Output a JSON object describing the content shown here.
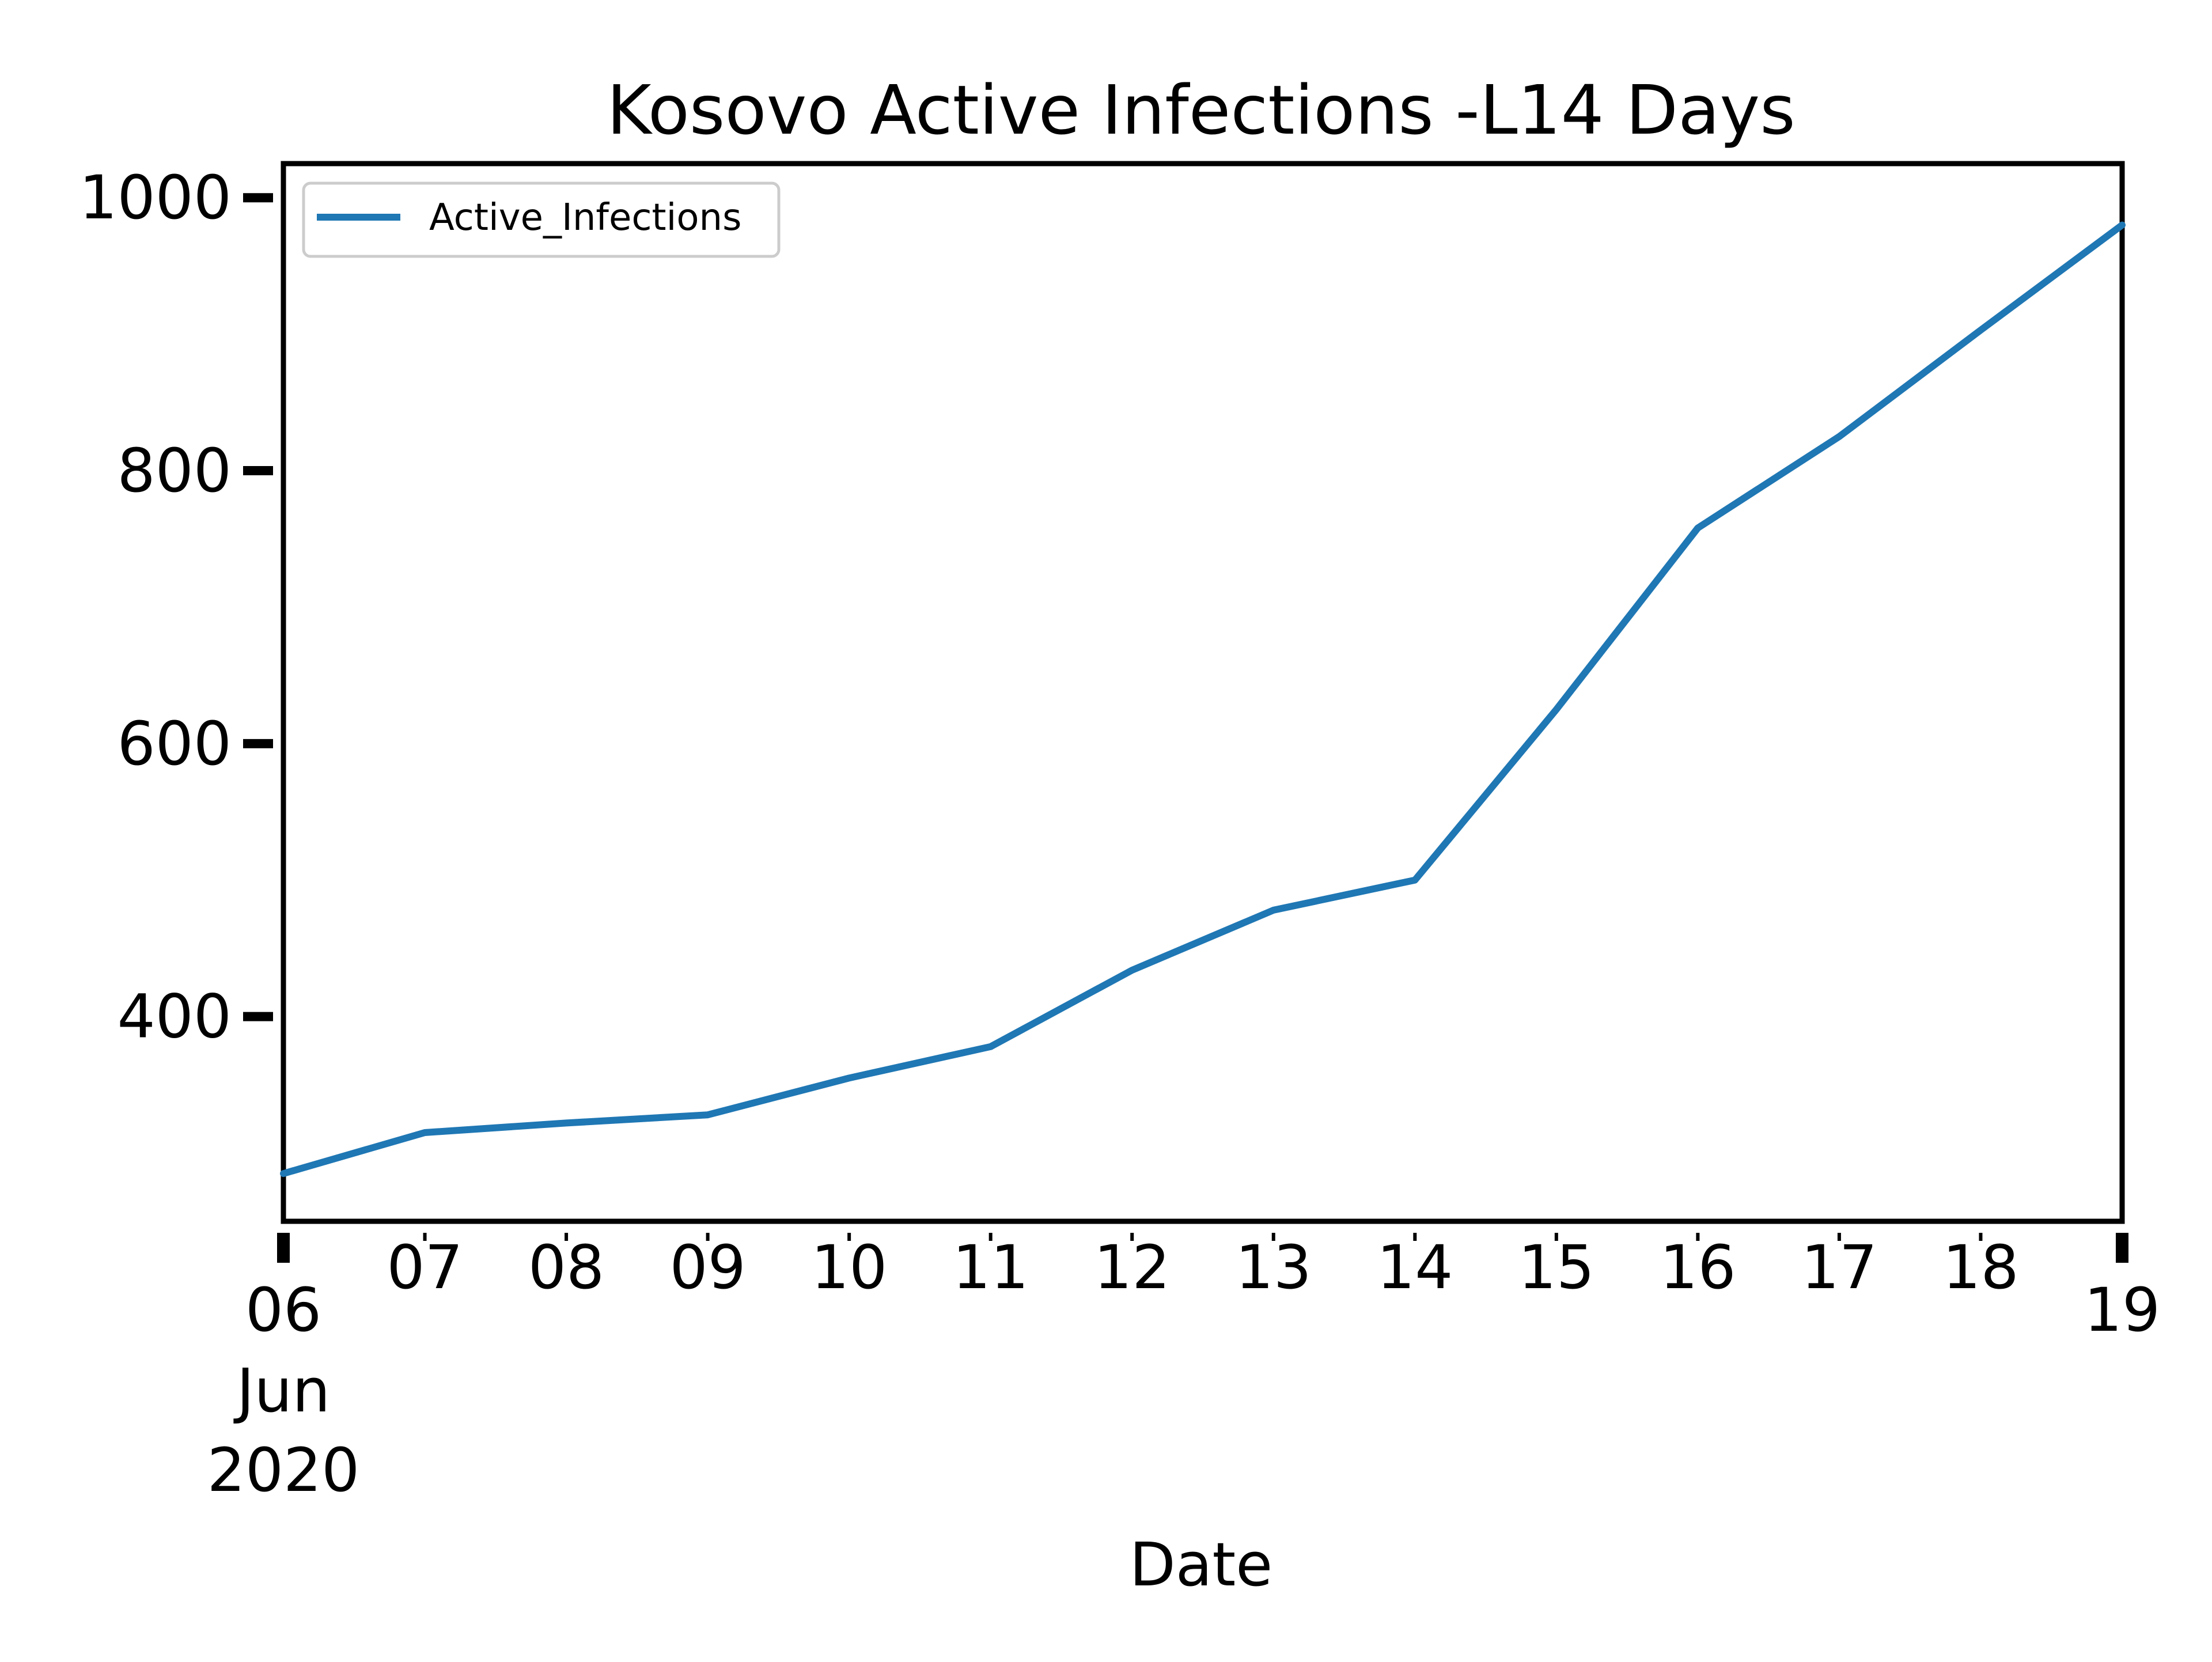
{
  "chart_data": {
    "type": "line",
    "title": "Kosovo Active Infections -L14 Days",
    "xlabel": "Date",
    "ylabel": "",
    "x_tick_labels": [
      "06",
      "07",
      "08",
      "09",
      "10",
      "11",
      "12",
      "13",
      "14",
      "15",
      "16",
      "17",
      "18",
      "19"
    ],
    "x_tick_sublabels": [
      "Jun",
      "2020"
    ],
    "x_range": [
      "2020-06-06",
      "2020-06-19"
    ],
    "y_ticks": [
      400,
      600,
      800,
      1000
    ],
    "ylim": [
      250,
      1025
    ],
    "grid": false,
    "legend": {
      "position": "top-left",
      "entries": [
        "Active_Infections"
      ]
    },
    "series": [
      {
        "name": "Active_Infections",
        "color": "#1f77b4",
        "points": [
          [
            "2020-06-06",
            285
          ],
          [
            "2020-06-07",
            315
          ],
          [
            "2020-06-08",
            322
          ],
          [
            "2020-06-09",
            328
          ],
          [
            "2020-06-10",
            355
          ],
          [
            "2020-06-11",
            378
          ],
          [
            "2020-06-12",
            434
          ],
          [
            "2020-06-13",
            478
          ],
          [
            "2020-06-14",
            500
          ],
          [
            "2020-06-15",
            625
          ],
          [
            "2020-06-16",
            758
          ],
          [
            "2020-06-17",
            825
          ],
          [
            "2020-06-18",
            903
          ],
          [
            "2020-06-19",
            980
          ]
        ]
      }
    ]
  }
}
